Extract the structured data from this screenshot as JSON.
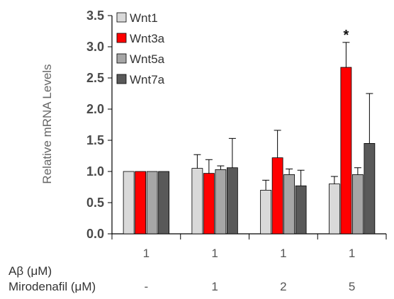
{
  "chart_data": {
    "type": "bar",
    "ylabel": "Relative mRNA Levels",
    "ylim": [
      0,
      3.5
    ],
    "yticks": [
      "0.0",
      "0.5",
      "1.0",
      "1.5",
      "2.0",
      "2.5",
      "3.0",
      "3.5"
    ],
    "groups": 4,
    "series": [
      {
        "name": "Wnt1",
        "color": "#d9d9d9",
        "values": [
          1.0,
          1.05,
          0.7,
          0.8
        ],
        "errors": [
          0.0,
          0.22,
          0.16,
          0.12
        ]
      },
      {
        "name": "Wnt3a",
        "color": "#ff0000",
        "values": [
          1.0,
          0.97,
          1.22,
          2.67
        ],
        "errors": [
          0.0,
          0.22,
          0.44,
          0.4
        ]
      },
      {
        "name": "Wnt5a",
        "color": "#a6a6a6",
        "values": [
          1.0,
          1.03,
          0.95,
          0.95
        ],
        "errors": [
          0.0,
          0.06,
          0.09,
          0.11
        ]
      },
      {
        "name": "Wnt7a",
        "color": "#595959",
        "values": [
          1.0,
          1.06,
          0.77,
          1.45
        ],
        "errors": [
          0.0,
          0.47,
          0.25,
          0.8
        ]
      }
    ],
    "annotations": [
      {
        "group": 3,
        "series": 1,
        "text": "*"
      }
    ],
    "legend_position": "top-left",
    "condition_rows": [
      {
        "label": "Aβ (μM)",
        "values": [
          "1",
          "1",
          "1",
          "1"
        ]
      },
      {
        "label": "Mirodenafil (μM)",
        "values": [
          "-",
          "1",
          "2",
          "5"
        ]
      }
    ]
  }
}
